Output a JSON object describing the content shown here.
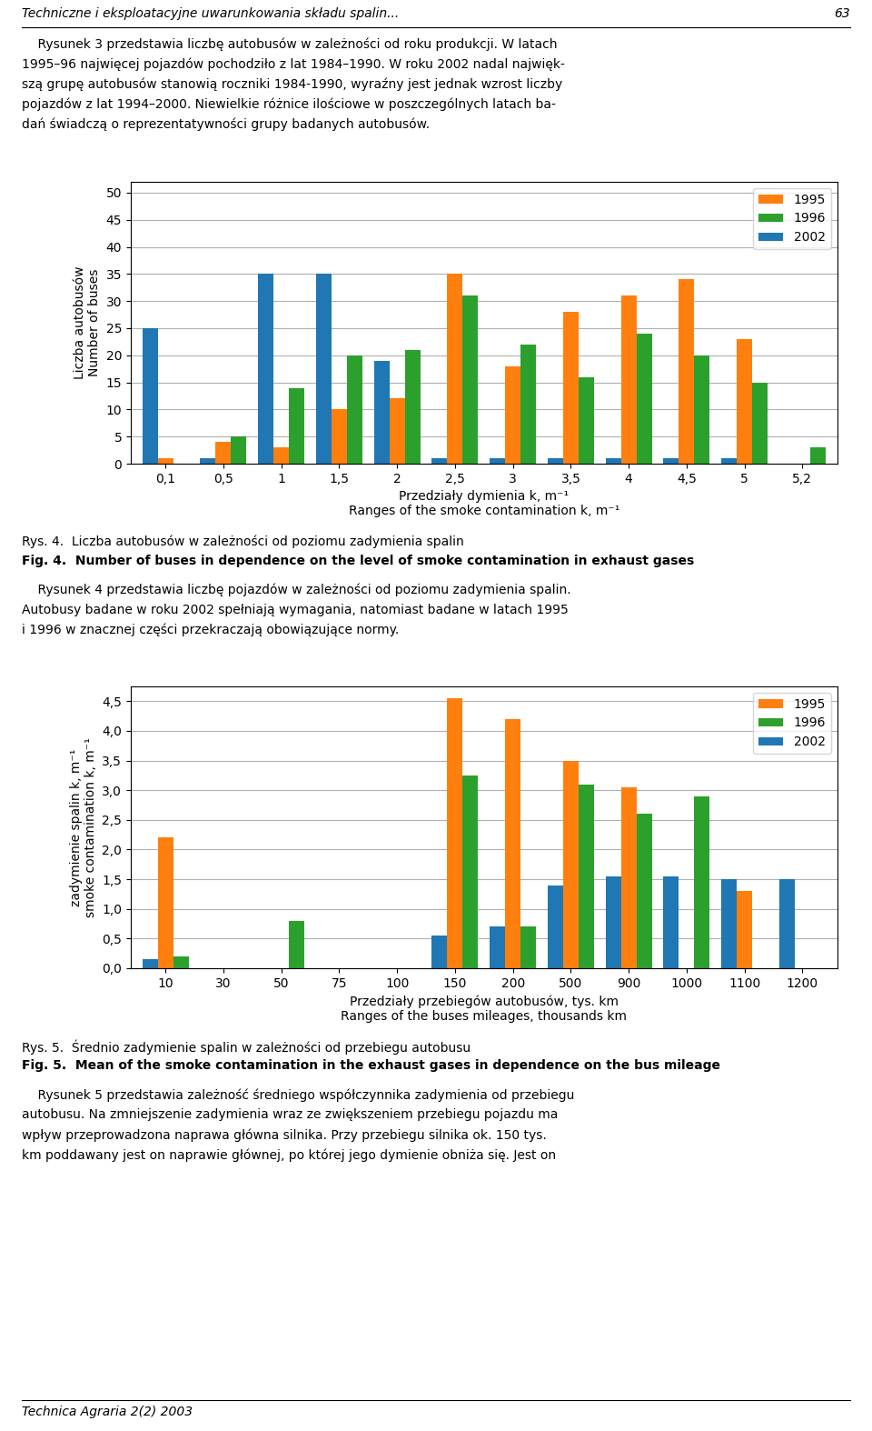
{
  "header": "Techniczne i eksploatacyjne uwarunkowania składu spalin...",
  "page_number": "63",
  "paragraphs": [
    [
      "    Rysunek 3 przedstawia liczbę autobusów w zależności od roku produkcji. W latach",
      "1995–96 najwięcej pojazdów pochodziło z lat 1984–1990. W roku 2002 nadal najwięk-",
      "szą grupę autobusów stanowią roczniki 1984-1990, wyraźny jest jednak wzrost liczby",
      "pojazdów z lat 1994–2000. Niewielkie różnice ilościowe w poszczególnych latach ba-",
      "dań świadczą o reprezentatywności grupy badanych autobusów."
    ],
    [
      "    Rysunek 4 przedstawia liczbę pojazdów w zależności od poziomu zadymienia spalin.",
      "Autobusy badane w roku 2002 spełniają wymagania, natomiast badane w latach 1995",
      "i 1996 w znacznej części przekraczają obowiązujące normy."
    ],
    [
      "    Rysunek 5 przedstawia zależność średniego współczynnika zadymienia od przebiegu",
      "autobusu. Na zmniejszenie zadymienia wraz ze zwiększeniem przebiegu pojazdu ma",
      "wpływ przeprowadzona naprawa główna silnika. Przy przebiegu silnika ok. 150 tys.",
      "km poddawany jest on naprawie głównej, po której jego dymienie obniża się. Jest on"
    ]
  ],
  "footer": "Technica Agraria 2(2) 2003",
  "chart_data": [
    {
      "type": "bar",
      "caption": [
        "Rys. 4.  Liczba autobusów w zależności od poziomu zadymienia spalin",
        "Fig. 4.  Number of buses in dependence on the level of smoke contamination in exhaust gases"
      ],
      "categories": [
        "0,1",
        "0,5",
        "1",
        "1,5",
        "2",
        "2,5",
        "3",
        "3,5",
        "4",
        "4,5",
        "5",
        "5,2"
      ],
      "series": [
        {
          "name": "2002",
          "values": [
            25,
            1,
            35,
            35,
            19,
            1,
            1,
            1,
            1,
            1,
            1,
            0
          ]
        },
        {
          "name": "1995",
          "values": [
            1,
            4,
            3,
            10,
            12,
            35,
            18,
            28,
            31,
            34,
            23,
            0
          ]
        },
        {
          "name": "1996",
          "values": [
            0,
            5,
            14,
            20,
            21,
            31,
            22,
            16,
            24,
            20,
            15,
            3
          ]
        }
      ],
      "ylabel": "Liczba autobusów\nNumber of buses",
      "xlabel": "Przedziały dymienia k, m⁻¹\nRanges of the smoke contamination k, m⁻¹",
      "ylim": [
        0,
        52
      ],
      "yticks": [
        0,
        5,
        10,
        15,
        20,
        25,
        30,
        35,
        40,
        45,
        50
      ],
      "grid": true,
      "legend": "upper right"
    },
    {
      "type": "bar",
      "caption": [
        "Rys. 5.  Średnio zadymienie spalin w zależności od przebiegu autobusu",
        "Fig. 5.  Mean of the smoke contamination in the exhaust gases in dependence on the bus mileage"
      ],
      "categories": [
        "10",
        "30",
        "50",
        "75",
        "100",
        "150",
        "200",
        "500",
        "900",
        "1000",
        "1100",
        "1200"
      ],
      "series": [
        {
          "name": "2002",
          "values": [
            0.15,
            0.0,
            0.0,
            0.0,
            0.0,
            0.55,
            0.7,
            1.4,
            1.55,
            1.55,
            1.5,
            1.5
          ]
        },
        {
          "name": "1995",
          "values": [
            2.2,
            0.0,
            0.0,
            0.0,
            0.0,
            4.55,
            4.2,
            3.5,
            3.05,
            0.0,
            1.3,
            0.0
          ]
        },
        {
          "name": "1996",
          "values": [
            0.2,
            0.0,
            0.8,
            0.0,
            0.0,
            3.25,
            0.7,
            3.1,
            2.6,
            2.9,
            0.0,
            0.0
          ]
        }
      ],
      "ylabel": "zadymienie spalin k, m⁻¹\nsmoke contamination k, m⁻¹",
      "xlabel": "Przedziały przebiegów autobusów, tys. km\nRanges of the buses mileages, thousands km",
      "ylim": [
        0.0,
        4.75
      ],
      "yticks": [
        {
          "value": 0.0,
          "label": "0,0"
        },
        {
          "value": 0.5,
          "label": "0,5"
        },
        {
          "value": 1.0,
          "label": "1,0"
        },
        {
          "value": 1.5,
          "label": "1,5"
        },
        {
          "value": 2.0,
          "label": "2,0"
        },
        {
          "value": 2.5,
          "label": "2,5"
        },
        {
          "value": 3.0,
          "label": "3,0"
        },
        {
          "value": 3.5,
          "label": "3,5"
        },
        {
          "value": 4.0,
          "label": "4,0"
        },
        {
          "value": 4.5,
          "label": "4,5"
        }
      ],
      "grid": true,
      "legend": "upper right"
    }
  ]
}
